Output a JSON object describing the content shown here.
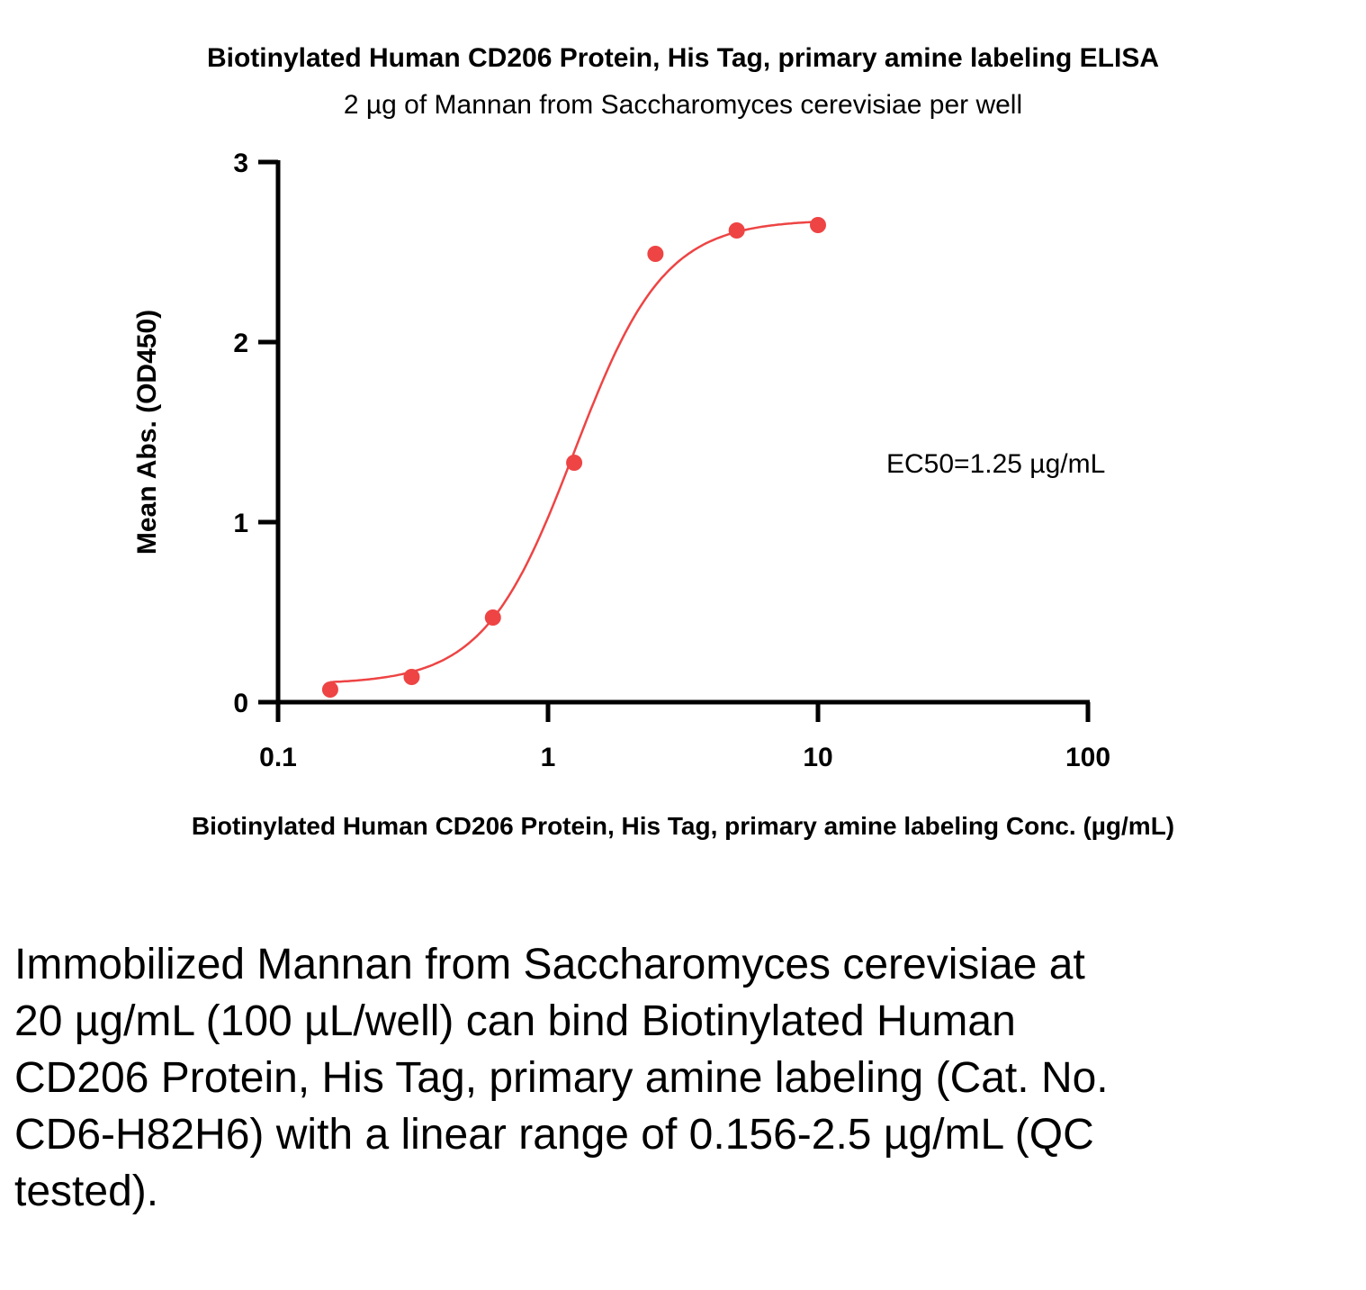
{
  "chart_data": {
    "type": "scatter",
    "title": "Biotinylated Human CD206 Protein, His Tag, primary amine labeling ELISA",
    "subtitle": "2 µg of Mannan from Saccharomyces cerevisiae per well",
    "xlabel": "Biotinylated Human CD206 Protein, His Tag, primary amine labeling Conc. (µg/mL)",
    "ylabel": "Mean Abs. (OD450)",
    "x_scale": "log",
    "xlim": [
      0.1,
      100
    ],
    "ylim": [
      0,
      3
    ],
    "x_ticks": [
      "0.1",
      "1",
      "10",
      "100"
    ],
    "y_ticks": [
      "0",
      "1",
      "2",
      "3"
    ],
    "annotation": "EC50=1.25 µg/mL",
    "color": "#ee4444",
    "series": [
      {
        "x": [
          0.156,
          0.3125,
          0.625,
          1.25,
          2.5,
          5,
          10
        ],
        "y": [
          0.07,
          0.14,
          0.47,
          1.33,
          2.49,
          2.62,
          2.65
        ]
      }
    ],
    "fit": {
      "bottom": 0.1,
      "top": 2.68,
      "ec50": 1.25,
      "hill": 2.6
    }
  },
  "caption": "Immobilized Mannan from Saccharomyces cerevisiae at 20 µg/mL (100 µL/well) can bind Biotinylated Human CD206 Protein, His Tag, primary amine labeling (Cat. No. CD6-H82H6) with a linear range of 0.156-2.5 µg/mL (QC tested)."
}
